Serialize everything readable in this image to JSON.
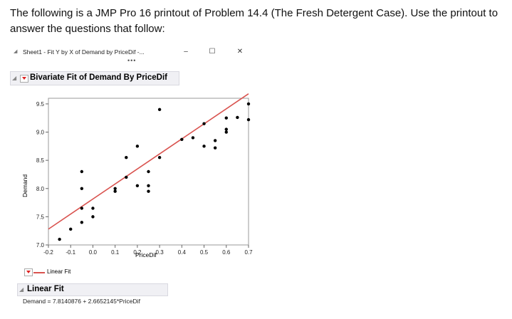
{
  "intro_text": "The following is a JMP Pro 16 printout of Problem 14.4 (The Fresh Detergent Case). Use the printout to answer the questions that follow:",
  "window": {
    "title": "Sheet1 - Fit Y by X of Demand by PriceDif -...",
    "minimize_glyph": "–",
    "maximize_glyph": "☐",
    "close_glyph": "✕",
    "overflow_glyph": "•••"
  },
  "report": {
    "header": "Bivariate Fit of Demand By PriceDif",
    "legend_label": "Linear Fit",
    "linear_fit_header": "Linear Fit",
    "equation": "Demand = 7.8140876 + 2.6652145*PriceDif"
  },
  "colors": {
    "fit_line": "#d9534f",
    "points": "#000000"
  },
  "chart_data": {
    "type": "scatter",
    "xlabel": "PriceDif",
    "ylabel": "Demand",
    "xlim": [
      -0.2,
      0.7
    ],
    "ylim": [
      7.0,
      9.6
    ],
    "x_ticks": [
      "-0.2",
      "-0.1",
      "0.0",
      "0.1",
      "0.2",
      "0.3",
      "0.4",
      "0.5",
      "0.6",
      "0.7"
    ],
    "y_ticks": [
      "7.0",
      "7.5",
      "8.0",
      "8.5",
      "9.0",
      "9.5"
    ],
    "grid": false,
    "points": [
      {
        "x": -0.15,
        "y": 7.1
      },
      {
        "x": -0.1,
        "y": 7.28
      },
      {
        "x": -0.05,
        "y": 7.4
      },
      {
        "x": -0.05,
        "y": 7.65
      },
      {
        "x": -0.05,
        "y": 8.0
      },
      {
        "x": -0.05,
        "y": 8.3
      },
      {
        "x": 0.0,
        "y": 7.5
      },
      {
        "x": 0.0,
        "y": 7.65
      },
      {
        "x": 0.1,
        "y": 7.95
      },
      {
        "x": 0.1,
        "y": 8.0
      },
      {
        "x": 0.15,
        "y": 8.2
      },
      {
        "x": 0.15,
        "y": 8.55
      },
      {
        "x": 0.2,
        "y": 8.05
      },
      {
        "x": 0.2,
        "y": 8.75
      },
      {
        "x": 0.25,
        "y": 7.95
      },
      {
        "x": 0.25,
        "y": 8.05
      },
      {
        "x": 0.25,
        "y": 8.3
      },
      {
        "x": 0.3,
        "y": 8.55
      },
      {
        "x": 0.3,
        "y": 9.4
      },
      {
        "x": 0.4,
        "y": 8.87
      },
      {
        "x": 0.45,
        "y": 8.9
      },
      {
        "x": 0.5,
        "y": 8.75
      },
      {
        "x": 0.5,
        "y": 9.15
      },
      {
        "x": 0.55,
        "y": 8.85
      },
      {
        "x": 0.6,
        "y": 9.0
      },
      {
        "x": 0.6,
        "y": 9.05
      },
      {
        "x": 0.6,
        "y": 9.25
      },
      {
        "x": 0.65,
        "y": 9.26
      },
      {
        "x": 0.7,
        "y": 9.22
      },
      {
        "x": 0.7,
        "y": 9.5
      },
      {
        "x": 0.55,
        "y": 8.72
      }
    ],
    "fit": {
      "intercept": 7.8140876,
      "slope": 2.6652145
    }
  }
}
